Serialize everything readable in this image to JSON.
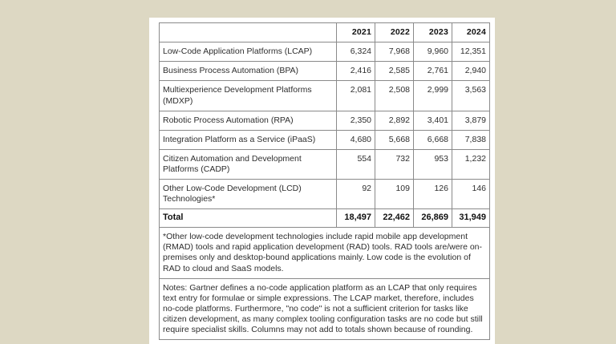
{
  "page": {
    "background_color": "#ddd8c3",
    "panel_color": "#ffffff",
    "border_color": "#8a8a8a",
    "text_color": "#2e2e2e"
  },
  "chart_data": {
    "type": "table",
    "columns": [
      "2021",
      "2022",
      "2023",
      "2024"
    ],
    "rows": [
      {
        "label": "Low-Code Application Platforms (LCAP)",
        "values": [
          "6,324",
          "7,968",
          "9,960",
          "12,351"
        ]
      },
      {
        "label": "Business Process Automation (BPA)",
        "values": [
          "2,416",
          "2,585",
          "2,761",
          "2,940"
        ]
      },
      {
        "label": "Multiexperience Development Platforms (MDXP)",
        "values": [
          "2,081",
          "2,508",
          "2,999",
          "3,563"
        ]
      },
      {
        "label": "Robotic Process Automation (RPA)",
        "values": [
          "2,350",
          "2,892",
          "3,401",
          "3,879"
        ]
      },
      {
        "label": "Integration Platform as a Service (iPaaS)",
        "values": [
          "4,680",
          "5,668",
          "6,668",
          "7,838"
        ]
      },
      {
        "label": "Citizen Automation and Development Platforms (CADP)",
        "values": [
          "554",
          "732",
          "953",
          "1,232"
        ]
      },
      {
        "label": "Other Low-Code Development (LCD) Technologies*",
        "values": [
          "92",
          "109",
          "126",
          "146"
        ]
      }
    ],
    "total_row": {
      "label": "Total",
      "values": [
        "18,497",
        "22,462",
        "26,869",
        "31,949"
      ]
    },
    "footnote": "*Other low-code development technologies include rapid mobile app development (RMAD) tools and rapid application development (RAD) tools. RAD tools are/were on-premises only and desktop-bound applications mainly. Low code is the evolution of RAD to cloud and SaaS models.",
    "notes": "Notes: Gartner defines a no-code application platform as an LCAP that only requires text entry for formulae or simple expressions. The LCAP market, therefore, includes no-code platforms. Furthermore, \"no code\" is not a sufficient criterion for tasks like citizen development, as many complex tooling configuration tasks are no code but still require specialist skills. Columns may not add to totals shown because of rounding."
  }
}
